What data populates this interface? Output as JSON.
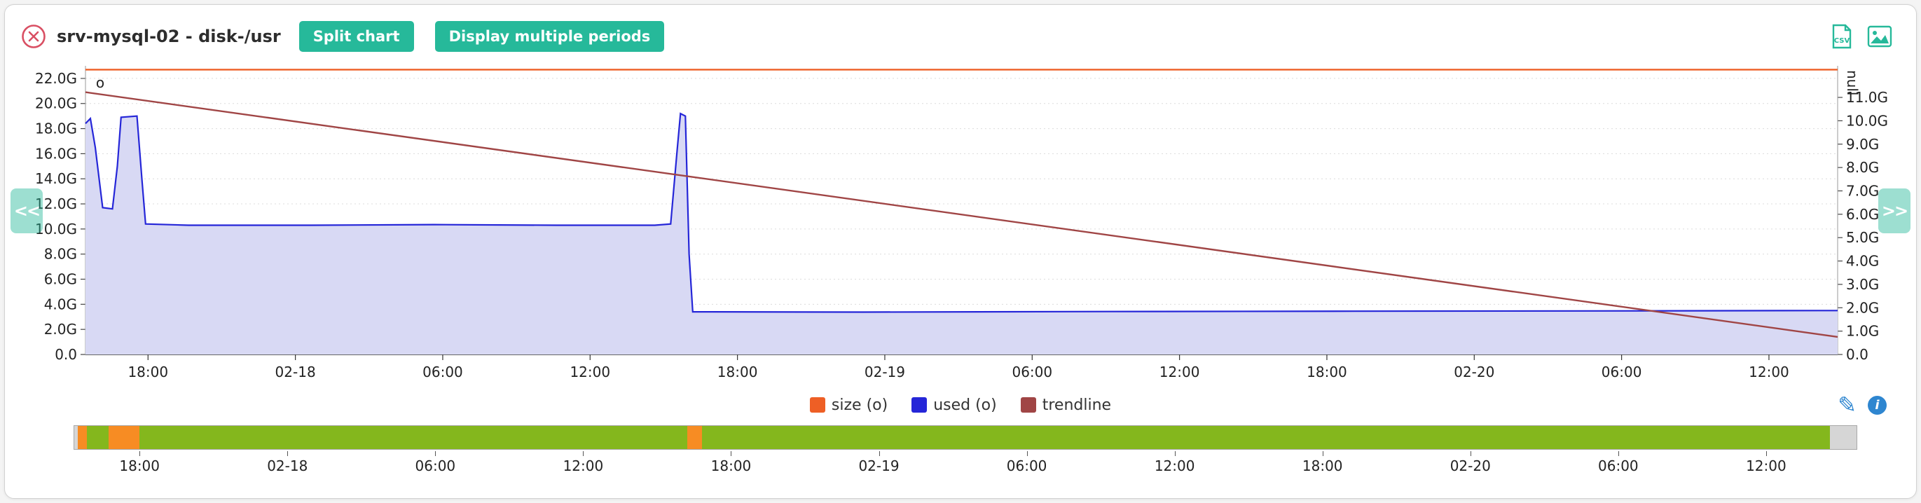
{
  "header": {
    "title": "srv-mysql-02 - disk-/usr",
    "split_label": "Split chart",
    "multiple_label": "Display multiple periods",
    "csv_label": "CSV"
  },
  "nav": {
    "left": "<<",
    "right": ">>"
  },
  "colors": {
    "accent_teal": "#26b99a",
    "close_red": "#d94f63",
    "icon_blue": "#2e86d0",
    "size_orange": "#ee5f25",
    "used_blue": "#2526d8",
    "used_fill": "#d8d9f4",
    "trend_red": "#a04545"
  },
  "chart_data": {
    "type": "area",
    "title": "srv-mysql-02 - disk-/usr",
    "x_ticks": [
      "18:00",
      "02-18",
      "06:00",
      "12:00",
      "18:00",
      "02-19",
      "06:00",
      "12:00",
      "18:00",
      "02-20",
      "06:00",
      "12:00"
    ],
    "left_axis": {
      "ticks": [
        "22.0G",
        "20.0G",
        "18.0G",
        "16.0G",
        "14.0G",
        "12.0G",
        "10.0G",
        "8.0G",
        "6.0G",
        "4.0G",
        "2.0G",
        "0.0"
      ],
      "min": 0,
      "max_value": 23.0
    },
    "right_axis": {
      "label": "null",
      "ticks": [
        "11.0G",
        "10.0G",
        "9.0G",
        "8.0G",
        "7.0G",
        "6.0G",
        "5.0G",
        "4.0G",
        "3.0G",
        "2.0G",
        "1.0G",
        "0.0"
      ],
      "min": 0,
      "max_value": 12.35
    },
    "marker": {
      "text": "o",
      "x": 0.0084,
      "value": 21.6
    },
    "series": [
      {
        "name": "size (o)",
        "kind": "line",
        "color": "#ee5f25",
        "points": [
          [
            0,
            22.7
          ],
          [
            1,
            22.7
          ]
        ]
      },
      {
        "name": "used (o)",
        "kind": "area",
        "color": "#2526d8",
        "fill": "#d8d9f4",
        "points": [
          [
            0,
            18.4
          ],
          [
            0.0028,
            18.8
          ],
          [
            0.0056,
            16.5
          ],
          [
            0.0098,
            11.7
          ],
          [
            0.0154,
            11.6
          ],
          [
            0.0182,
            15.0
          ],
          [
            0.0203,
            18.9
          ],
          [
            0.0294,
            19.0
          ],
          [
            0.0322,
            14.0
          ],
          [
            0.0343,
            10.4
          ],
          [
            0.0588,
            10.3
          ],
          [
            0.1289,
            10.3
          ],
          [
            0.1989,
            10.35
          ],
          [
            0.2689,
            10.3
          ],
          [
            0.3249,
            10.3
          ],
          [
            0.334,
            10.4
          ],
          [
            0.3375,
            16.0
          ],
          [
            0.3396,
            19.2
          ],
          [
            0.3424,
            19.0
          ],
          [
            0.3445,
            8.0
          ],
          [
            0.3466,
            3.4
          ],
          [
            0.444,
            3.38
          ],
          [
            0.584,
            3.42
          ],
          [
            0.724,
            3.45
          ],
          [
            0.864,
            3.47
          ],
          [
            0.99,
            3.5
          ],
          [
            1,
            3.5
          ]
        ]
      },
      {
        "name": "trendline",
        "kind": "line",
        "color": "#a04545",
        "points": [
          [
            0,
            20.9
          ],
          [
            1,
            1.4
          ]
        ]
      }
    ]
  },
  "timeline": {
    "labels": [
      "18:00",
      "02-18",
      "06:00",
      "12:00",
      "18:00",
      "02-19",
      "06:00",
      "12:00",
      "18:00",
      "02-20",
      "06:00",
      "12:00"
    ],
    "colors": {
      "ok": "#84b71d",
      "warn": "#f78c23",
      "unknown": "#d6d6d6"
    },
    "segments": [
      {
        "start": 0.0021,
        "end": 0.0069,
        "status": "warn"
      },
      {
        "start": 0.0069,
        "end": 0.0193,
        "status": "ok"
      },
      {
        "start": 0.0193,
        "end": 0.0365,
        "status": "warn"
      },
      {
        "start": 0.0365,
        "end": 0.3438,
        "status": "ok"
      },
      {
        "start": 0.3438,
        "end": 0.3521,
        "status": "warn"
      },
      {
        "start": 0.3521,
        "end": 0.9849,
        "status": "ok"
      },
      {
        "start": 0.9849,
        "end": 1.0,
        "status": "unknown"
      }
    ]
  }
}
